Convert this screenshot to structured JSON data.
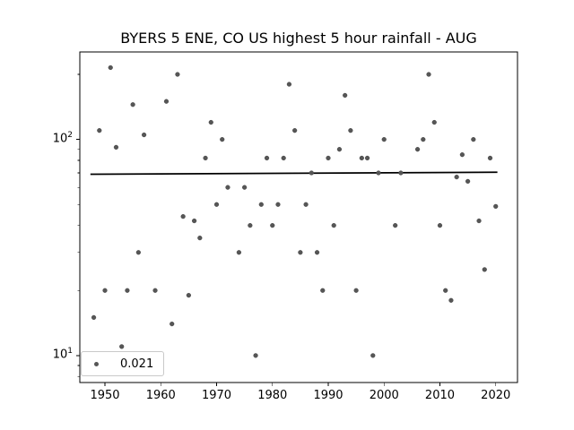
{
  "figure": {
    "title": "BYERS 5 ENE, CO US highest 5 hour rainfall - AUG"
  },
  "legend": {
    "label": "0.021"
  },
  "chart_data": {
    "type": "scatter",
    "title": "BYERS 5 ENE, CO US highest 5 hour rainfall - AUG",
    "xlabel": "",
    "ylabel": "",
    "grid": false,
    "x_scale": "linear",
    "y_scale": "log",
    "xlim": [
      1945.5,
      2023.9
    ],
    "ylim": [
      7.5,
      254
    ],
    "x_ticks": [
      1950,
      1960,
      1970,
      1980,
      1990,
      2000,
      2010,
      2020
    ],
    "y_major_ticks": [
      10,
      100
    ],
    "y_major_tick_labels": [
      {
        "base": "10",
        "exp": "1"
      },
      {
        "base": "10",
        "exp": "2"
      }
    ],
    "y_minor_ticks": [
      8,
      9,
      20,
      30,
      40,
      50,
      60,
      70,
      80,
      90,
      200
    ],
    "point_color": "#565656",
    "x": [
      1948,
      1949,
      1950,
      1951,
      1952,
      1953,
      1954,
      1955,
      1956,
      1957,
      1959,
      1961,
      1962,
      1963,
      1964,
      1965,
      1966,
      1967,
      1968,
      1969,
      1970,
      1971,
      1972,
      1974,
      1975,
      1976,
      1977,
      1978,
      1979,
      1980,
      1981,
      1982,
      1983,
      1984,
      1985,
      1986,
      1987,
      1988,
      1989,
      1990,
      1991,
      1992,
      1993,
      1994,
      1995,
      1996,
      1997,
      1998,
      1999,
      2000,
      2002,
      2003,
      2006,
      2007,
      2008,
      2009,
      2010,
      2011,
      2012,
      2013,
      2014,
      2015,
      2016,
      2017,
      2018,
      2019,
      2020
    ],
    "y": [
      15,
      110,
      20,
      215,
      92,
      11,
      20,
      145,
      30,
      105,
      20,
      150,
      14,
      200,
      44,
      19,
      42,
      35,
      82,
      120,
      50,
      100,
      60,
      30,
      60,
      40,
      10,
      50,
      82,
      40,
      50,
      82,
      180,
      110,
      30,
      50,
      70,
      30,
      20,
      82,
      40,
      90,
      160,
      110,
      20,
      82,
      82,
      10,
      70,
      100,
      40,
      70,
      90,
      100,
      200,
      120,
      40,
      20,
      18,
      67,
      85,
      64,
      100,
      42,
      25,
      82,
      49
    ],
    "trend_line": {
      "x": [
        1947.4,
        2020.3
      ],
      "y": [
        69.0,
        70.5
      ],
      "color": "#000000",
      "slope_label": "0.021"
    },
    "legend": {
      "label": "0.021",
      "location": "lower left"
    }
  }
}
